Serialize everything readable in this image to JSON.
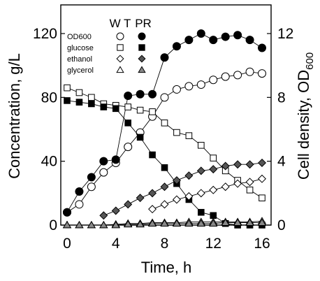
{
  "chart_data": {
    "type": "line",
    "xlabel": "Time, h",
    "ylabel_left": "Concentration, g/L",
    "ylabel_right_main": "Cell density, OD",
    "ylabel_right_sub": "600",
    "xlim": [
      0,
      16
    ],
    "ylim_left": [
      0,
      120
    ],
    "ylim_right": [
      0,
      12
    ],
    "x_ticks": [
      0,
      4,
      8,
      12,
      16
    ],
    "y_left_ticks": [
      0,
      40,
      80,
      120
    ],
    "y_right_ticks": [
      0,
      4,
      8,
      12
    ],
    "legend": {
      "columns": [
        "W T",
        "PR"
      ],
      "rows": [
        "OD600",
        "glucose",
        "ethanol",
        "glycerol"
      ]
    },
    "series": [
      {
        "name": "OD600",
        "strain": "W T",
        "axis": "right",
        "marker": "circle",
        "fill": "#ffffff",
        "x": [
          0,
          1,
          2,
          3,
          4,
          5,
          6,
          7,
          8,
          9,
          10,
          11,
          12,
          13,
          14,
          15,
          16
        ],
        "y": [
          0.8,
          1.3,
          2.4,
          3.3,
          3.9,
          4.9,
          5.8,
          6.8,
          8.0,
          8.5,
          8.7,
          8.8,
          9.1,
          9.3,
          9.4,
          9.6,
          9.5
        ]
      },
      {
        "name": "OD600",
        "strain": "PR",
        "axis": "right",
        "marker": "circle",
        "fill": "#000000",
        "x": [
          0,
          1,
          2,
          3,
          4,
          5,
          6,
          7,
          8,
          9,
          10,
          11,
          12,
          13,
          14,
          15,
          16
        ],
        "y": [
          0.8,
          2.1,
          3.0,
          4.0,
          4.1,
          8.1,
          8.2,
          8.2,
          10.5,
          11.2,
          11.6,
          12.0,
          11.6,
          11.8,
          11.9,
          11.6,
          11.1
        ]
      },
      {
        "name": "glucose",
        "strain": "W T",
        "axis": "left",
        "marker": "square",
        "fill": "#ffffff",
        "x": [
          0,
          1,
          2,
          3,
          4,
          5,
          6,
          7,
          8,
          9,
          10,
          11,
          12,
          13,
          14,
          15,
          16
        ],
        "y": [
          86,
          83,
          80,
          76,
          75,
          74,
          72,
          71,
          64,
          58,
          56,
          50,
          42,
          34,
          28,
          22,
          17
        ]
      },
      {
        "name": "glucose",
        "strain": "PR",
        "axis": "left",
        "marker": "square",
        "fill": "#000000",
        "x": [
          0,
          1,
          2,
          3,
          4,
          5,
          6,
          7,
          8,
          9,
          10,
          11,
          12,
          13,
          14,
          15,
          16
        ],
        "y": [
          78,
          77,
          76,
          74,
          73,
          64,
          55,
          44,
          36,
          26,
          16,
          8,
          6,
          1,
          0,
          0,
          0
        ]
      },
      {
        "name": "ethanol",
        "strain": "W T",
        "axis": "left",
        "marker": "diamond",
        "fill": "#ffffff",
        "x": [
          7,
          8,
          9,
          10,
          11,
          12,
          13,
          14,
          15,
          16
        ],
        "y": [
          10,
          13,
          16,
          18,
          20,
          22,
          24,
          26,
          27,
          29
        ]
      },
      {
        "name": "ethanol",
        "strain": "PR",
        "axis": "left",
        "marker": "diamond",
        "fill": "#555555",
        "x": [
          3,
          4,
          5,
          6,
          7,
          8,
          9,
          10,
          11,
          12,
          13,
          14,
          15,
          16
        ],
        "y": [
          6,
          9,
          13,
          17,
          20,
          24,
          28,
          31,
          34,
          35,
          37,
          38,
          38,
          39
        ]
      },
      {
        "name": "glycerol",
        "strain": "W T",
        "axis": "left",
        "marker": "triangle",
        "fill": "#ffffff",
        "x": [
          0,
          1,
          2,
          3,
          4,
          5,
          6,
          7,
          8,
          9,
          10,
          11,
          12,
          13,
          14,
          15,
          16
        ],
        "y": [
          0,
          0,
          0,
          0,
          0.5,
          1,
          1,
          1.5,
          1.5,
          1.5,
          2,
          2,
          2,
          2,
          2,
          2,
          2.5
        ]
      },
      {
        "name": "glycerol",
        "strain": "PR",
        "axis": "left",
        "marker": "triangle",
        "fill": "#888888",
        "x": [
          0,
          1,
          2,
          3,
          4,
          5,
          6,
          7,
          8,
          9,
          10,
          11,
          12,
          13,
          14,
          15,
          16
        ],
        "y": [
          0,
          0,
          0,
          0,
          0,
          0.5,
          0.5,
          1,
          1,
          1,
          1,
          1,
          1,
          1.5,
          1.5,
          1.5,
          1.5
        ]
      }
    ]
  }
}
